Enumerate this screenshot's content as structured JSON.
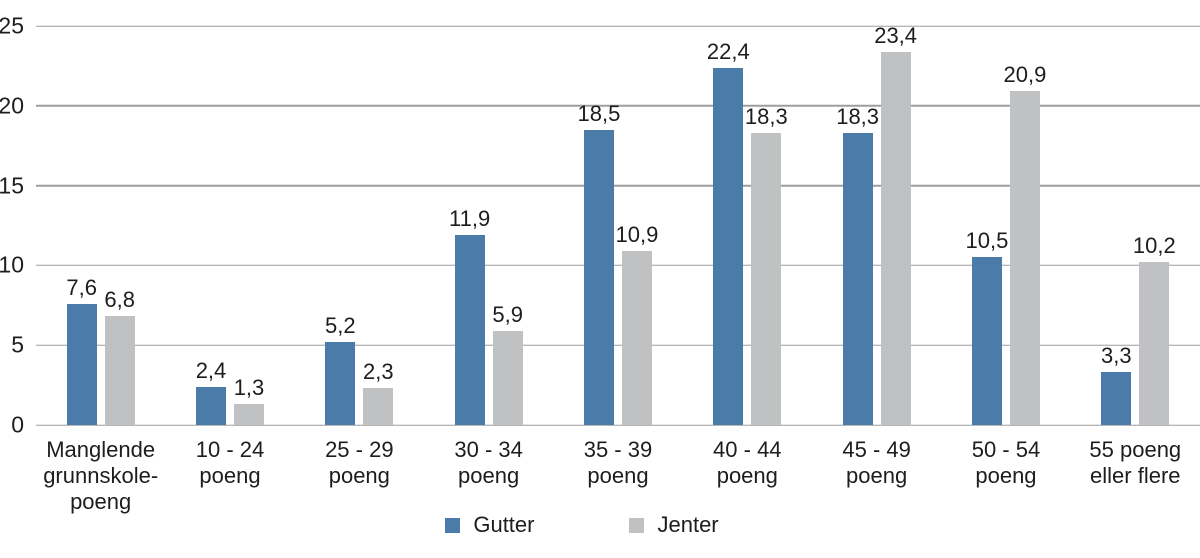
{
  "figure": {
    "background": "#ffffff",
    "text_color": "#1d1d1b",
    "gridline_color": "#9e9e9e"
  },
  "chart_data": {
    "type": "bar",
    "title": "",
    "xlabel": "",
    "ylabel": "",
    "grid": true,
    "legend_position": "bottom",
    "decimal_separator": ",",
    "categories": [
      "Manglende\ngrunnskole-\npoeng",
      "10 - 24\npoeng",
      "25 - 29\npoeng",
      "30 - 34\npoeng",
      "35 - 39\npoeng",
      "40 - 44\npoeng",
      "45 - 49\npoeng",
      "50 - 54\npoeng",
      "55 poeng\neller flere"
    ],
    "series": [
      {
        "name": "Gutter",
        "color": "#4b7ba9",
        "values": [
          7.6,
          2.4,
          5.2,
          11.9,
          18.5,
          22.4,
          18.3,
          10.5,
          3.3
        ],
        "data_labels": [
          "7,6",
          "2,4",
          "5,2",
          "11,9",
          "18,5",
          "22,4",
          "18,3",
          "10,5",
          "3,3"
        ]
      },
      {
        "name": "Jenter",
        "color": "#c0c1c3",
        "values": [
          6.8,
          1.3,
          2.3,
          5.9,
          10.9,
          18.3,
          23.4,
          20.9,
          10.2
        ],
        "data_labels": [
          "6,8",
          "1,3",
          "2,3",
          "5,9",
          "10,9",
          "18,3",
          "23,4",
          "20,9",
          "10,2"
        ]
      }
    ],
    "y_axis": {
      "min": 0,
      "max": 25,
      "step": 5,
      "ticks": [
        "0",
        "5",
        "10",
        "15",
        "20",
        "25"
      ]
    }
  }
}
